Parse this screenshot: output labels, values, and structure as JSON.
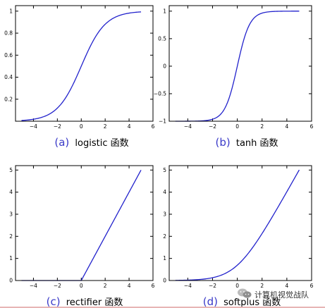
{
  "chart_data": [
    {
      "type": "line",
      "function": "logistic",
      "caption": {
        "letter": "(a)",
        "text": "logistic 函数"
      },
      "xlim": [
        -5.5,
        6
      ],
      "ylim": [
        0,
        1.05
      ],
      "xticks": [
        -4,
        -2,
        0,
        2,
        4,
        6
      ],
      "xtick_labels": [
        "−4",
        "−2",
        "0",
        "2",
        "4",
        "6"
      ],
      "yticks": [
        0.2,
        0.4,
        0.6,
        0.8,
        1
      ],
      "ytick_labels": [
        "0.2",
        "0.4",
        "0.6",
        "0.8",
        "1"
      ],
      "series": [
        {
          "x": [
            -5,
            -4,
            -3,
            -2,
            -1,
            0,
            1,
            2,
            3,
            4,
            5
          ],
          "y": [
            0.007,
            0.018,
            0.047,
            0.119,
            0.269,
            0.5,
            0.731,
            0.881,
            0.953,
            0.982,
            0.993
          ]
        }
      ]
    },
    {
      "type": "line",
      "function": "tanh",
      "caption": {
        "letter": "(b)",
        "text": "tanh 函数"
      },
      "xlim": [
        -5.5,
        6
      ],
      "ylim": [
        -1,
        1.1
      ],
      "xticks": [
        -4,
        -2,
        0,
        2,
        4,
        6
      ],
      "xtick_labels": [
        "−4",
        "−2",
        "0",
        "2",
        "4",
        "6"
      ],
      "yticks": [
        -1,
        -0.5,
        0,
        0.5,
        1
      ],
      "ytick_labels": [
        "−1",
        "−0.5",
        "0",
        "0.5",
        "1"
      ],
      "series": [
        {
          "x": [
            -5,
            -4,
            -3,
            -2,
            -1,
            -0.5,
            0,
            0.5,
            1,
            2,
            3,
            4,
            5
          ],
          "y": [
            -1.0,
            -0.999,
            -0.995,
            -0.964,
            -0.762,
            -0.462,
            0,
            0.462,
            0.762,
            0.964,
            0.995,
            0.999,
            1.0
          ]
        }
      ]
    },
    {
      "type": "line",
      "function": "rectifier",
      "caption": {
        "letter": "(c)",
        "text": "rectifier 函数"
      },
      "xlim": [
        -5.5,
        6
      ],
      "ylim": [
        0,
        5.2
      ],
      "xticks": [
        -4,
        -2,
        0,
        2,
        4,
        6
      ],
      "xtick_labels": [
        "−4",
        "−2",
        "0",
        "2",
        "4",
        "6"
      ],
      "yticks": [
        0,
        1,
        2,
        3,
        4,
        5
      ],
      "ytick_labels": [
        "0",
        "1",
        "2",
        "3",
        "4",
        "5"
      ],
      "series": [
        {
          "x": [
            -5,
            0,
            5
          ],
          "y": [
            0,
            0,
            5
          ]
        }
      ]
    },
    {
      "type": "line",
      "function": "softplus",
      "caption": {
        "letter": "(d)",
        "text": "softplus 函数"
      },
      "xlim": [
        -5.5,
        6
      ],
      "ylim": [
        0,
        5.2
      ],
      "xticks": [
        -4,
        -2,
        0,
        2,
        4,
        6
      ],
      "xtick_labels": [
        "−4",
        "−2",
        "0",
        "2",
        "4",
        "6"
      ],
      "yticks": [
        0,
        1,
        2,
        3,
        4,
        5
      ],
      "ytick_labels": [
        "0",
        "1",
        "2",
        "3",
        "4",
        "5"
      ],
      "series": [
        {
          "x": [
            -5,
            -4,
            -3,
            -2,
            -1,
            0,
            1,
            2,
            3,
            4,
            5
          ],
          "y": [
            0.007,
            0.018,
            0.049,
            0.127,
            0.313,
            0.693,
            1.313,
            2.127,
            3.049,
            4.018,
            5.007
          ]
        }
      ]
    }
  ],
  "watermark": {
    "text": "计算机视觉战队",
    "icon": "wechat-icon"
  },
  "colors": {
    "curve": "#2222cc",
    "caption_letter": "#3a3ac8",
    "footer_rule": "#e7b5b5"
  }
}
